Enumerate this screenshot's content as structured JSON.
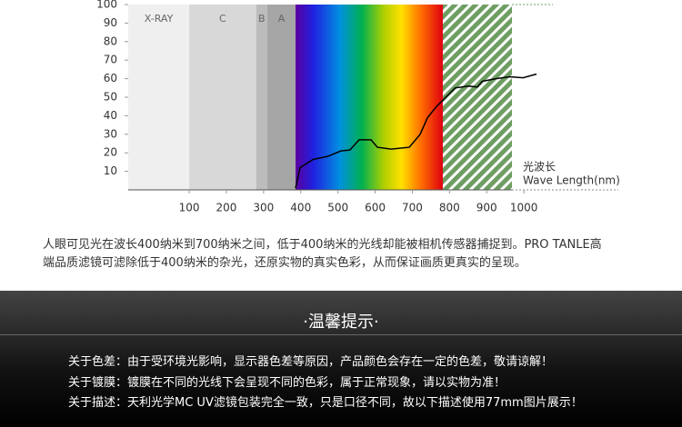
{
  "chart_data": {
    "type": "line",
    "xlim": [
      -64,
      1254
    ],
    "ylim": [
      0,
      100
    ],
    "xticks": [
      100,
      200,
      300,
      400,
      500,
      600,
      700,
      800,
      900,
      1000
    ],
    "yticks": [
      10,
      20,
      30,
      40,
      50,
      60,
      70,
      80,
      90,
      100
    ],
    "bands": [
      {
        "label": "X-RAY",
        "from": -64,
        "to": 100,
        "color": "#efefef"
      },
      {
        "label": "C",
        "from": 100,
        "to": 280,
        "color": "#d8d8d8"
      },
      {
        "label": "B",
        "from": 280,
        "to": 310,
        "color": "#bcbcbc"
      },
      {
        "label": "A",
        "from": 310,
        "to": 386,
        "color": "#a6a6a6"
      }
    ],
    "spectrum": [
      386,
      782
    ],
    "infrared": [
      782,
      968
    ],
    "x": [
      386,
      398,
      434,
      471,
      508,
      532,
      557,
      589,
      606,
      643,
      692,
      721,
      741,
      765,
      790,
      815,
      851,
      875,
      888,
      925,
      962,
      998,
      1034
    ],
    "series": [
      {
        "color": "#000000",
        "values": [
          1,
          12,
          16.5,
          18,
          21,
          21.5,
          27,
          27,
          23,
          22,
          23,
          30,
          39,
          45,
          50,
          55,
          56,
          55.5,
          58.6,
          60,
          61,
          60.5,
          62.5
        ]
      }
    ],
    "annotation": [
      "光波长",
      "Wave Length(nm)"
    ]
  },
  "description": [
    "人眼可见光在波长400纳米到700纳米之间，低于400纳米的光线却能被相机传感器捕捉到。PRO TANLE高",
    "端品质滤镜可滤除低于400纳米的杂光，还原实物的真实色彩，从而保证画质更真实的呈现。"
  ],
  "notice": {
    "title": "·温馨提示·",
    "items": [
      "关于色差：由于受环境光影响，显示器色差等原因，产品颜色会存在一定的色差，敬请谅解！",
      "关于镀膜：镀膜在不同的光线下会呈现不同的色彩，属于正常现象，请以实物为准！",
      "关于描述：天利光学MC UV滤镜包装完全一致，只是口径不同，故以下描述使用77mm图片展示！"
    ]
  }
}
